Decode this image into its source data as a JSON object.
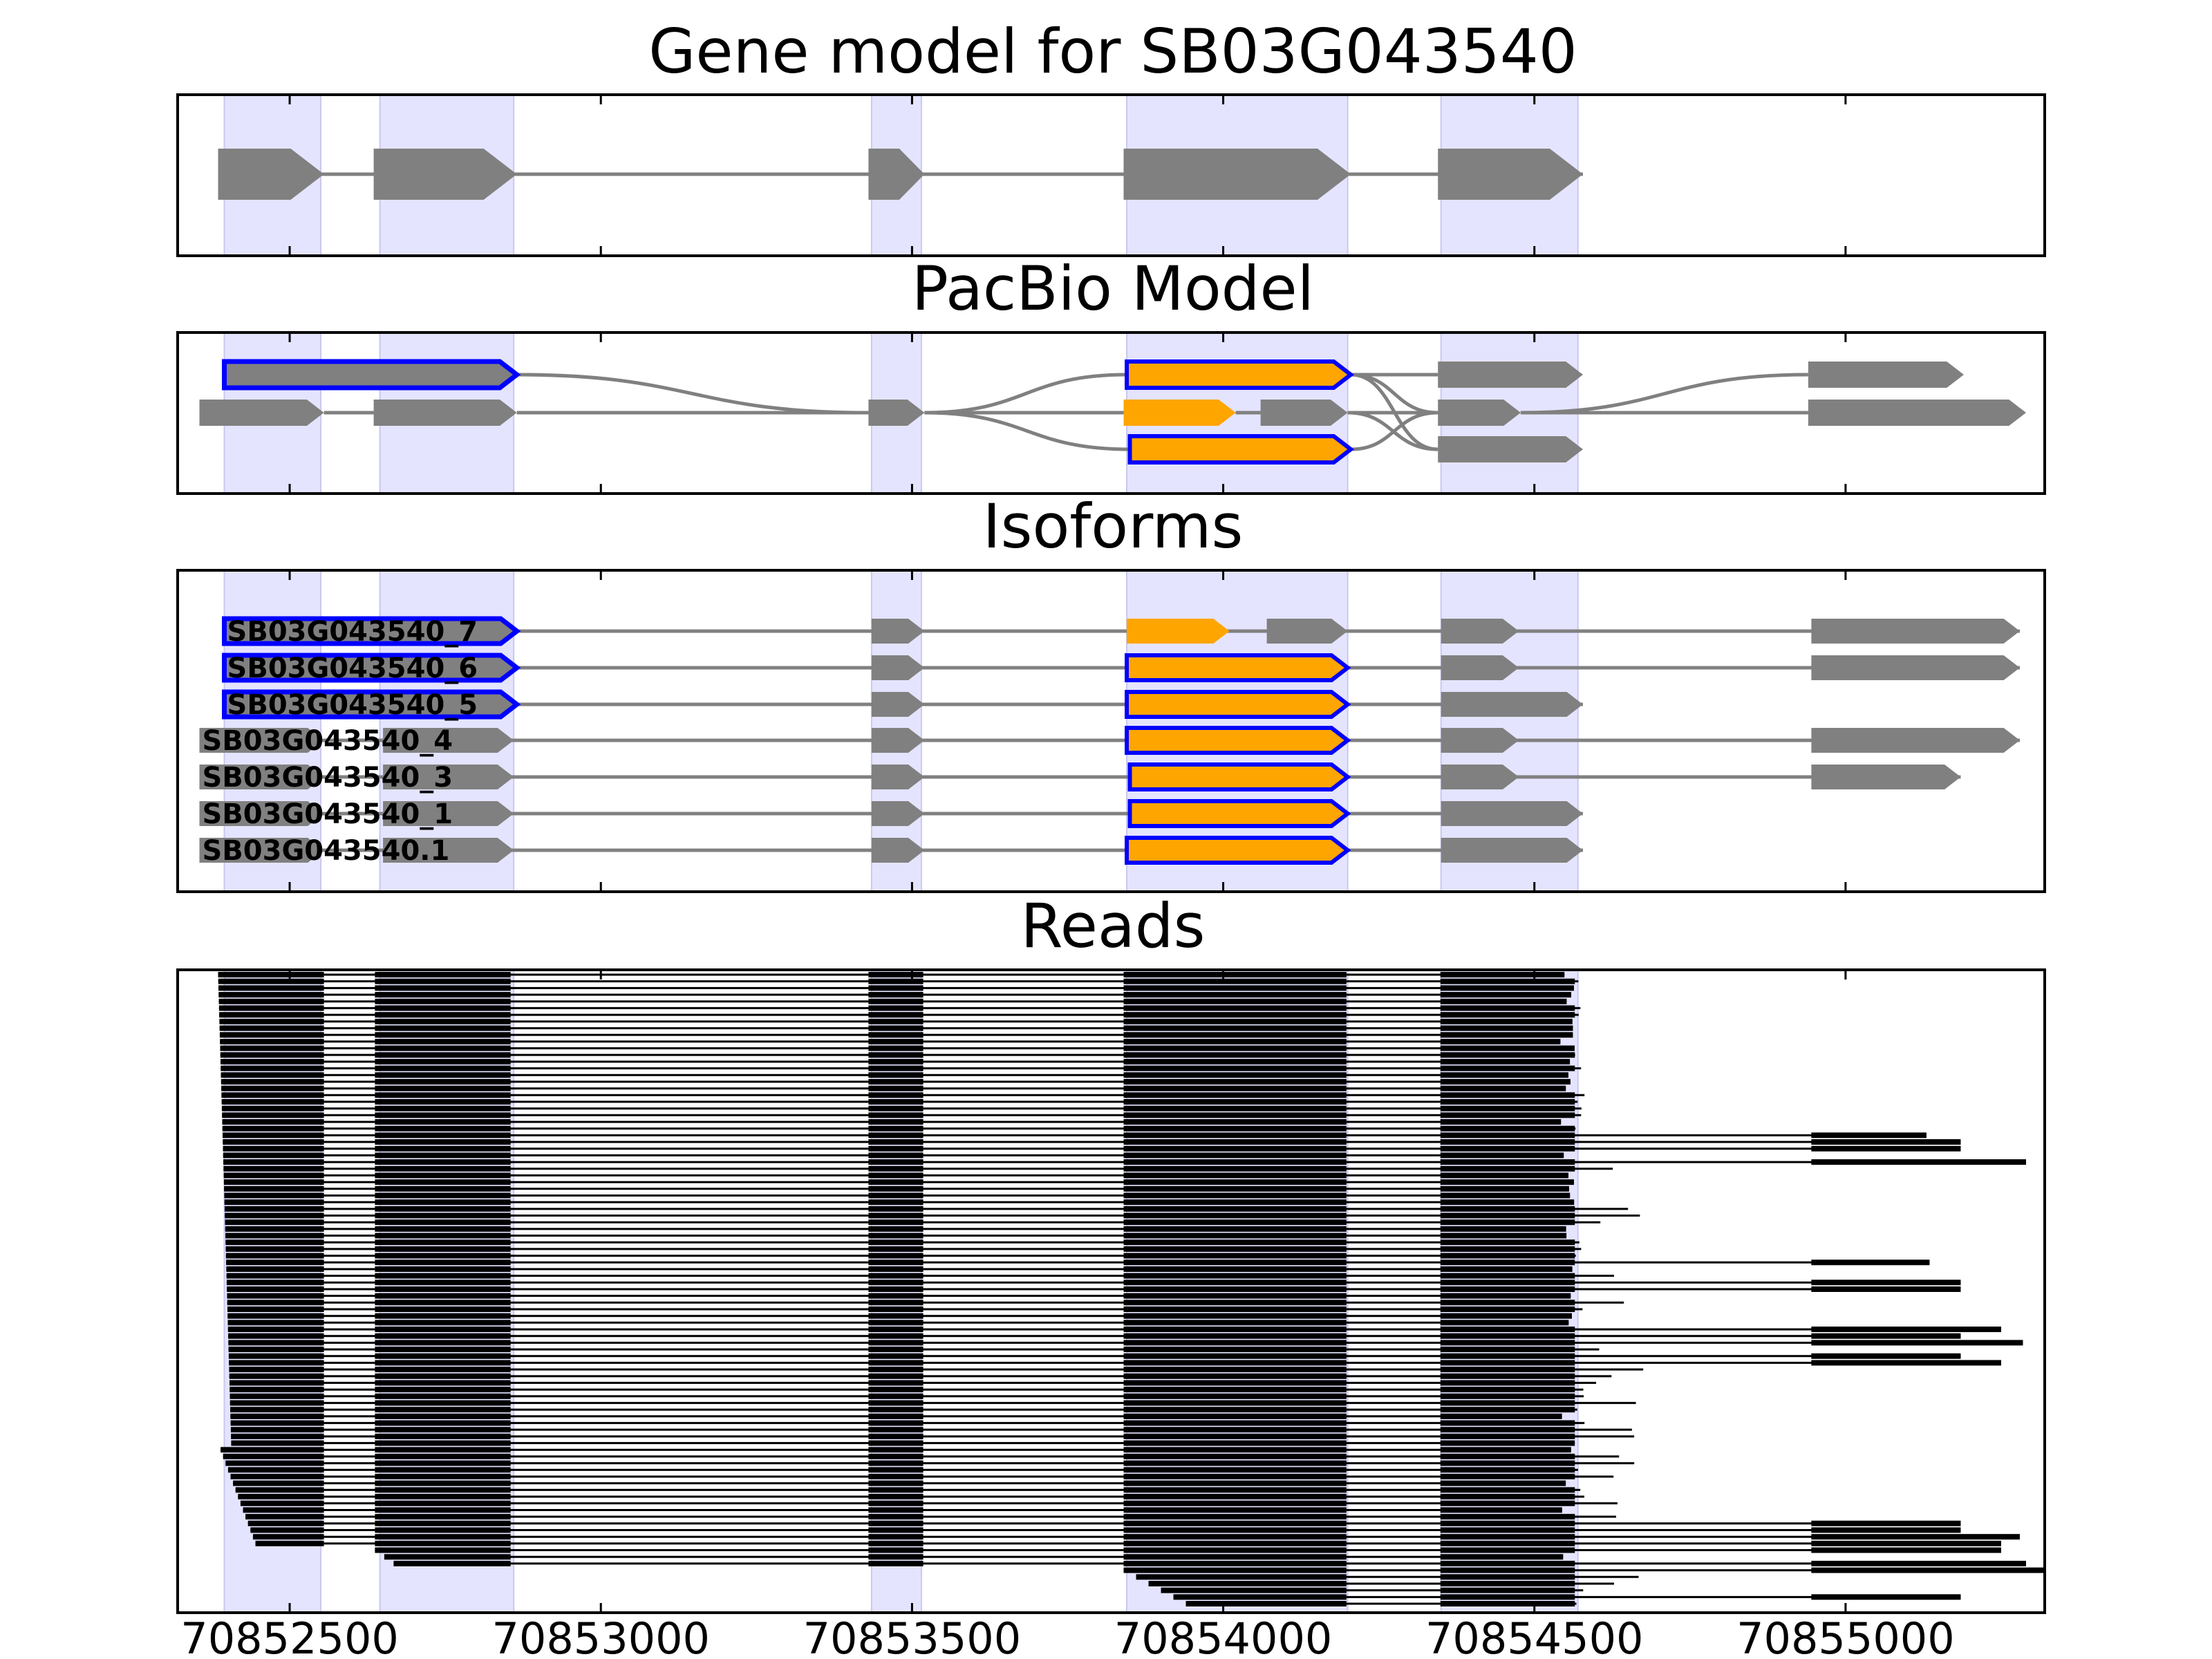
{
  "figure": {
    "panel_titles": {
      "gene_model": "Gene model for SB03G043540",
      "pacbio": "PacBio Model",
      "isoforms": "Isoforms",
      "reads": "Reads"
    },
    "x_ticks": [
      70852500,
      70853000,
      70853500,
      70854000,
      70854500,
      70855000
    ],
    "x_tick_labels": [
      "70852500",
      "70853000",
      "70853500",
      "70854000",
      "70854500",
      "70855000"
    ]
  },
  "colors": {
    "exon": "#808080",
    "intron": "#808080",
    "cds_fill": "#ffa500",
    "outline_blue": "#0000ff",
    "highlight": "#e4e4ff",
    "read": "#000000"
  },
  "chart_data": {
    "type": "gene_structure",
    "x_range": [
      70852320,
      70855320
    ],
    "highlight_regions": [
      [
        70852395,
        70852550
      ],
      [
        70852645,
        70852860
      ],
      [
        70853435,
        70853515
      ],
      [
        70853845,
        70854200
      ],
      [
        70854350,
        70854570
      ]
    ],
    "gene_model": {
      "exons": [
        [
          70852385,
          70852555
        ],
        [
          70852635,
          70852865
        ],
        [
          70853430,
          70853520
        ],
        [
          70853840,
          70854205
        ],
        [
          70854345,
          70854578
        ]
      ]
    },
    "pacbio_model": [
      {
        "exon": [
          70852395,
          70852865
        ],
        "style": "blue"
      },
      {
        "exon": [
          70852355,
          70852555
        ],
        "style": "gray"
      },
      {
        "exon": [
          70852635,
          70852865
        ],
        "style": "gray"
      },
      {
        "exon": [
          70853430,
          70853520
        ],
        "style": "gray"
      },
      {
        "exon": [
          70853845,
          70854205
        ],
        "style": "blue-orange"
      },
      {
        "exon": [
          70853840,
          70854020
        ],
        "style": "orange"
      },
      {
        "exon": [
          70854060,
          70854200
        ],
        "style": "gray"
      },
      {
        "exon": [
          70853850,
          70854205
        ],
        "style": "blue-orange"
      },
      {
        "exon": [
          70854345,
          70854578
        ],
        "style": "gray"
      },
      {
        "exon": [
          70854345,
          70854478
        ],
        "style": "gray"
      },
      {
        "exon": [
          70854345,
          70854578
        ],
        "style": "gray"
      },
      {
        "exon": [
          70854940,
          70855190
        ],
        "style": "gray"
      },
      {
        "exon": [
          70854940,
          70855290
        ],
        "style": "gray"
      }
    ],
    "isoforms": [
      {
        "name": "SB03G043540_7",
        "exons": [
          [
            70852395,
            70852865,
            "blue"
          ],
          [
            70853435,
            70853520,
            "gray"
          ],
          [
            70853845,
            70854010,
            "orange"
          ],
          [
            70854070,
            70854200,
            "gray"
          ],
          [
            70854350,
            70854475,
            "gray"
          ],
          [
            70854945,
            70855280,
            "gray"
          ]
        ]
      },
      {
        "name": "SB03G043540_6",
        "exons": [
          [
            70852395,
            70852865,
            "blue"
          ],
          [
            70853435,
            70853520,
            "gray"
          ],
          [
            70853845,
            70854200,
            "blue-orange"
          ],
          [
            70854350,
            70854475,
            "gray"
          ],
          [
            70854945,
            70855280,
            "gray"
          ]
        ]
      },
      {
        "name": "SB03G043540_5",
        "exons": [
          [
            70852395,
            70852865,
            "blue"
          ],
          [
            70853435,
            70853520,
            "gray"
          ],
          [
            70853845,
            70854200,
            "blue-orange"
          ],
          [
            70854350,
            70854578,
            "gray"
          ]
        ]
      },
      {
        "name": "SB03G043540_4",
        "exons": [
          [
            70852355,
            70852555,
            "gray"
          ],
          [
            70852650,
            70852860,
            "gray"
          ],
          [
            70853435,
            70853520,
            "gray"
          ],
          [
            70853845,
            70854200,
            "blue-orange"
          ],
          [
            70854350,
            70854475,
            "gray"
          ],
          [
            70854945,
            70855280,
            "gray"
          ]
        ]
      },
      {
        "name": "SB03G043540_3",
        "exons": [
          [
            70852355,
            70852555,
            "gray"
          ],
          [
            70852650,
            70852860,
            "gray"
          ],
          [
            70853435,
            70853520,
            "gray"
          ],
          [
            70853850,
            70854200,
            "blue-orange"
          ],
          [
            70854350,
            70854475,
            "gray"
          ],
          [
            70854945,
            70855185,
            "gray"
          ]
        ]
      },
      {
        "name": "SB03G043540_1",
        "exons": [
          [
            70852355,
            70852555,
            "gray"
          ],
          [
            70852650,
            70852860,
            "gray"
          ],
          [
            70853435,
            70853520,
            "gray"
          ],
          [
            70853850,
            70854200,
            "blue-orange"
          ],
          [
            70854350,
            70854578,
            "gray"
          ]
        ]
      },
      {
        "name": "SB03G043540.1",
        "exons": [
          [
            70852355,
            70852555,
            "gray"
          ],
          [
            70852650,
            70852860,
            "gray"
          ],
          [
            70853435,
            70853520,
            "gray"
          ],
          [
            70853845,
            70854200,
            "blue-orange"
          ],
          [
            70854350,
            70854578,
            "gray"
          ]
        ]
      }
    ],
    "reads": {
      "count": 95,
      "exons": [
        [
          70852385,
          70852555
        ],
        [
          70852637,
          70852855
        ],
        [
          70853430,
          70853518
        ],
        [
          70853840,
          70854198
        ],
        [
          70854349,
          70854565
        ]
      ],
      "extension_start": 70854945,
      "rows_with_extension": [
        24,
        25,
        26,
        28,
        43,
        46,
        47,
        53,
        54,
        55,
        57,
        58,
        82,
        83,
        84,
        85,
        86,
        88,
        89,
        93
      ],
      "extension_ends": {
        "24": 70855130,
        "25": 70855185,
        "26": 70855185,
        "28": 70855290,
        "43": 70855135,
        "46": 70855185,
        "47": 70855185,
        "53": 70855250,
        "54": 70855185,
        "55": 70855285,
        "57": 70855185,
        "58": 70855250,
        "82": 70855185,
        "83": 70855185,
        "84": 70855280,
        "85": 70855250,
        "86": 70855250,
        "88": 70855290,
        "89": 70855320,
        "93": 70855185
      }
    }
  }
}
